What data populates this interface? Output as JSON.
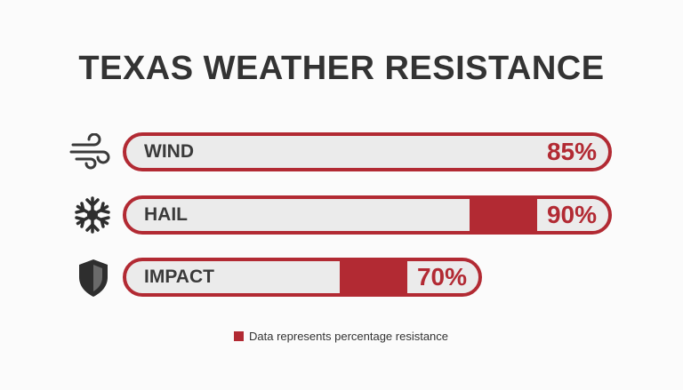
{
  "chart_data": {
    "type": "bar",
    "orientation": "horizontal",
    "title": "TEXAS WEATHER RESISTANCE",
    "categories": [
      "WIND",
      "HAIL",
      "IMPACT"
    ],
    "values": [
      85,
      90,
      70
    ],
    "value_labels": [
      "85%",
      "90%",
      "70%"
    ],
    "unit": "%",
    "ylim": [
      0,
      100
    ],
    "icons": [
      "wind-icon",
      "snowflake-icon",
      "shield-icon"
    ],
    "colors": {
      "accent": "#b22a33",
      "track": "#ebebeb",
      "text": "#333333"
    },
    "legend": {
      "label": "Data represents percentage resistance",
      "placement": "bottom-center"
    }
  }
}
